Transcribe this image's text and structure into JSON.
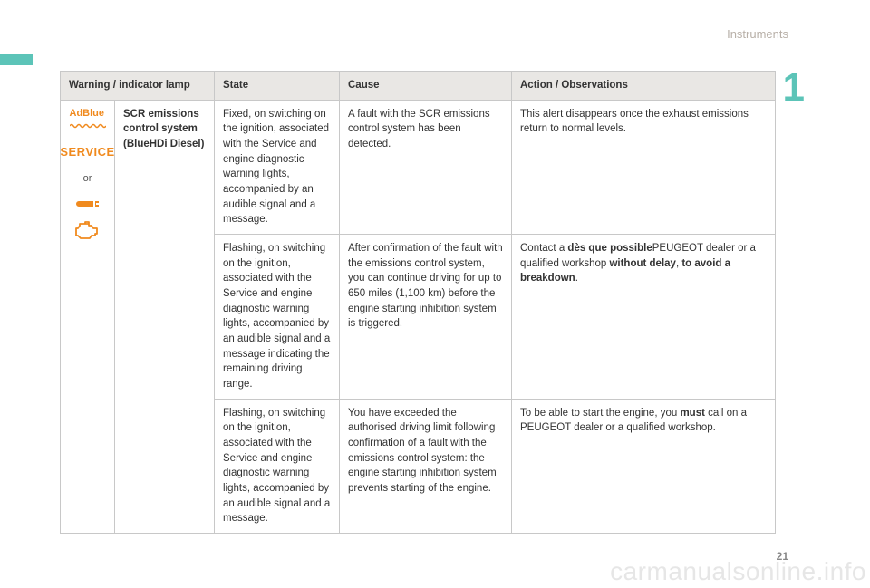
{
  "header": {
    "section": "Instruments",
    "chapter_number": "1"
  },
  "footer": {
    "page_number": "21",
    "watermark": "carmanualsonline.info"
  },
  "table": {
    "columns": {
      "lamp": "Warning / indicator lamp",
      "state": "State",
      "cause": "Cause",
      "action": "Action / Observations"
    },
    "lamp_icons": {
      "adblue_label": "AdBlue",
      "service_label": "SERVICE",
      "or_label": "or"
    },
    "lamp_name_html": "<b>SCR emissions control system (BlueHDi Diesel)</b>",
    "rows": [
      {
        "state": "Fixed, on switching on the ignition, associated with the Service and engine diagnostic warning lights, accompanied by an audible signal and a message.",
        "cause": "A fault with the SCR emissions control system has been detected.",
        "action_html": "This alert disappears once the exhaust emissions return to normal levels."
      },
      {
        "state": "Flashing, on switching on the ignition, associated with the Service and engine diagnostic warning lights, accompanied by an audible signal and a message indicating the remaining driving range.",
        "cause": "After confirmation of the fault with the emissions control system, you can continue driving for up to 650 miles (1,100 km) before the engine starting inhibition system is triggered.",
        "action_html": "Contact a <b>dès que possible</b>PEUGEOT dealer or a qualified workshop <b>without delay</b>, <b>to avoid a breakdown</b>."
      },
      {
        "state": "Flashing, on switching on the ignition, associated with the Service and engine diagnostic warning lights, accompanied by an audible signal and a message.",
        "cause": "You have exceeded the authorised driving limit following confirmation of a fault with the emissions control system: the engine starting inhibition system prevents starting of the engine.",
        "action_html": "To be able to start the engine, you <b>must</b> call on a PEUGEOT dealer or a qualified workshop."
      }
    ]
  }
}
